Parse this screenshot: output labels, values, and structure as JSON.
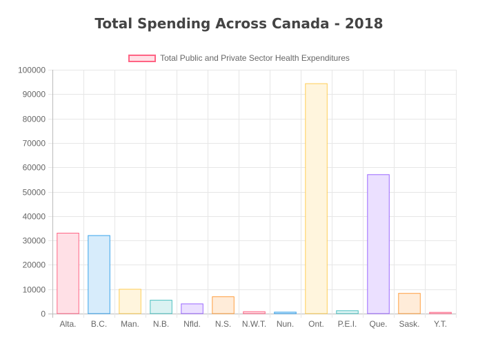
{
  "chart_data": {
    "type": "bar",
    "title": "Total Spending Across Canada - 2018",
    "xlabel": "",
    "ylabel": "",
    "ylim": [
      0,
      100000
    ],
    "yticks": [
      0,
      10000,
      20000,
      30000,
      40000,
      50000,
      60000,
      70000,
      80000,
      90000,
      100000
    ],
    "grid": true,
    "legend_position": "top",
    "categories": [
      "Alta.",
      "B.C.",
      "Man.",
      "N.B.",
      "Nfld.",
      "N.S.",
      "N.W.T.",
      "Nun.",
      "Ont.",
      "P.E.I.",
      "Que.",
      "Sask.",
      "Y.T."
    ],
    "series": [
      {
        "name": "Total Public and Private Sector Health Expenditures",
        "values": [
          33000,
          32000,
          10000,
          5500,
          4000,
          6900,
          800,
          600,
          94300,
          1200,
          57000,
          8300,
          500
        ]
      }
    ],
    "bar_colors": [
      {
        "fill": "#ffe0e6",
        "stroke": "#ff6384"
      },
      {
        "fill": "#d7ecfb",
        "stroke": "#36a2eb"
      },
      {
        "fill": "#fff5dd",
        "stroke": "#ffce56"
      },
      {
        "fill": "#dbf2f2",
        "stroke": "#4bc0c0"
      },
      {
        "fill": "#ebe0ff",
        "stroke": "#9966ff"
      },
      {
        "fill": "#ffecd9",
        "stroke": "#ff9f40"
      },
      {
        "fill": "#ffe0e6",
        "stroke": "#ff6384"
      },
      {
        "fill": "#d7ecfb",
        "stroke": "#36a2eb"
      },
      {
        "fill": "#fff5dd",
        "stroke": "#ffce56"
      },
      {
        "fill": "#dbf2f2",
        "stroke": "#4bc0c0"
      },
      {
        "fill": "#ebe0ff",
        "stroke": "#9966ff"
      },
      {
        "fill": "#ffecd9",
        "stroke": "#ff9f40"
      },
      {
        "fill": "#ffe0e6",
        "stroke": "#ff6384"
      }
    ],
    "legend_colors": {
      "fill": "#ffe0e6",
      "stroke": "#ff6384"
    }
  }
}
